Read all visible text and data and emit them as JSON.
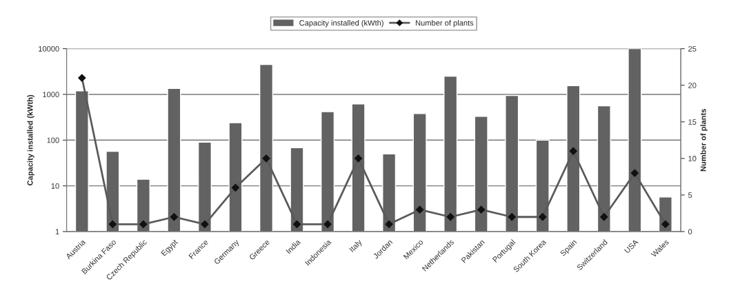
{
  "chart_data": {
    "type": "bar",
    "categories": [
      "Austria",
      "Burkina Faso",
      "Czech Republic",
      "Egypt",
      "France",
      "Germany",
      "Greece",
      "India",
      "Indonesia",
      "Italy",
      "Jordan",
      "Mexico",
      "Netherlands",
      "Pakistan",
      "Portugal",
      "South Korea",
      "Spain",
      "Switzerland",
      "USA",
      "Wales"
    ],
    "series": [
      {
        "name": "Capacity installed (kWth)",
        "color": "#626262",
        "values": [
          1200,
          57,
          14,
          1350,
          90,
          240,
          4500,
          68,
          420,
          620,
          50,
          380,
          2500,
          330,
          950,
          100,
          1550,
          560,
          10000,
          5.7
        ]
      },
      {
        "name": "Number of plants",
        "type": "line",
        "axis": "y2",
        "color": "#5a5a5a",
        "marker": "diamond",
        "values": [
          21,
          1,
          1,
          2,
          1,
          6,
          10,
          1,
          1,
          10,
          1,
          3,
          2,
          3,
          2,
          2,
          11,
          2,
          8,
          1
        ]
      }
    ],
    "ylabel": "Capacity installed (kWth)",
    "y2label": "Number of plants",
    "log": "y",
    "ylim": [
      1,
      10000
    ],
    "yticks": [
      1,
      10,
      100,
      1000,
      10000
    ],
    "y2lim": [
      0,
      25
    ],
    "y2ticks": [
      0,
      5,
      10,
      15,
      20,
      25
    ],
    "grid": "y",
    "legend": "top"
  }
}
